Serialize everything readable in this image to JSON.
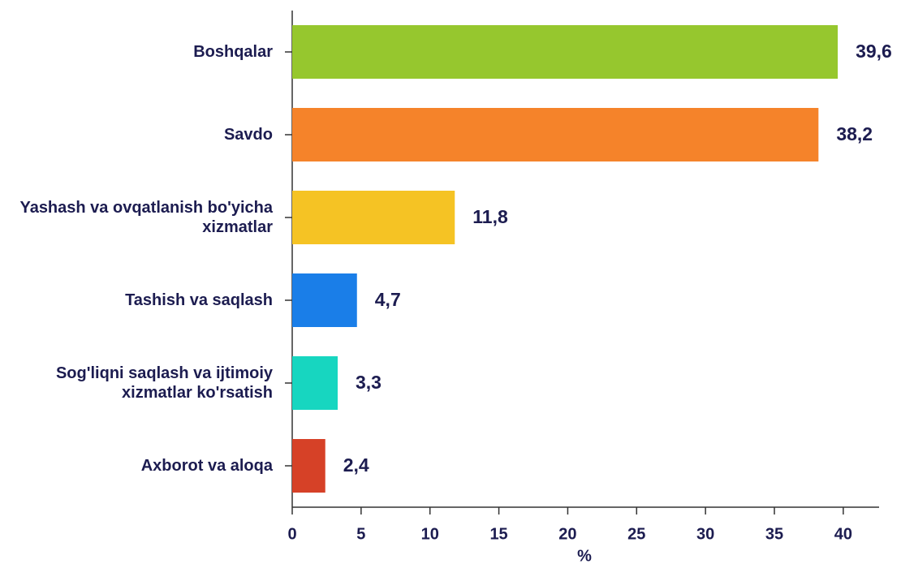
{
  "chart_data": {
    "type": "bar",
    "orientation": "horizontal",
    "x_label": "%",
    "categories": [
      "Boshqalar",
      "Savdo",
      "Yashash va ovqatlanish bo'yicha xizmatlar",
      "Tashish va saqlash",
      "Sog'liqni saqlash va ijtimoiy xizmatlar ko'rsatish",
      "Axborot va aloqa"
    ],
    "values": [
      39.6,
      38.2,
      11.8,
      4.7,
      3.3,
      2.4
    ],
    "value_labels": [
      "39,6",
      "38,2",
      "11,8",
      "4,7",
      "3,3",
      "2,4"
    ],
    "colors": [
      "#96c72e",
      "#f5832a",
      "#f5c324",
      "#1a7ee8",
      "#17d6c0",
      "#d64127"
    ],
    "xlim": [
      0,
      42.6
    ],
    "xticks": [
      0,
      5,
      10,
      15,
      20,
      25,
      30,
      35,
      40
    ],
    "grid": false
  }
}
